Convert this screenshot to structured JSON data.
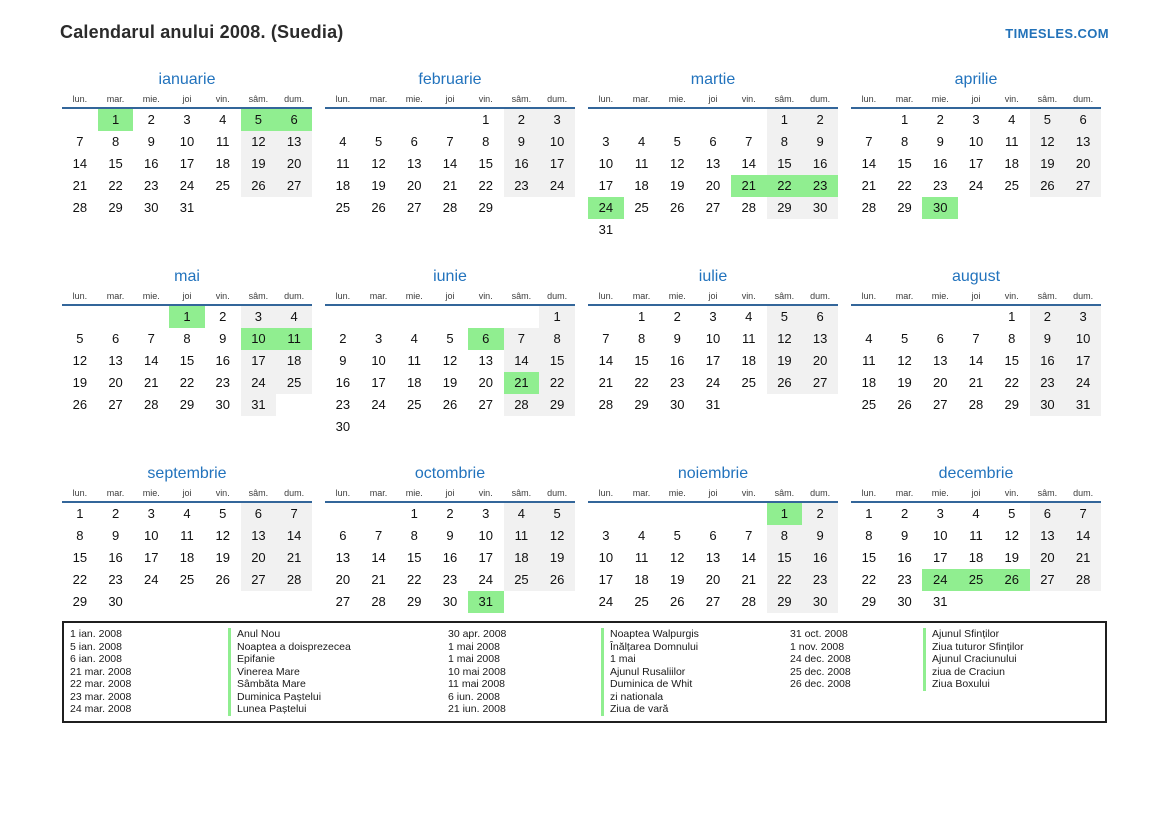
{
  "page": {
    "title": "Calendarul anului 2008. (Suedia)",
    "brand": "TIMESLES.COM"
  },
  "colors": {
    "accent_blue": "#2273bd",
    "header_underline": "#33669a",
    "holiday_green": "#90ee90",
    "weekend_gray": "#f1f1f1"
  },
  "calendar": {
    "year": "2008",
    "day_headers": [
      "lun.",
      "mar.",
      "mie.",
      "joi",
      "vin.",
      "sâm.",
      "dum."
    ],
    "months": [
      {
        "name": "ianuarie",
        "holidays": [
          1,
          5,
          6
        ],
        "weeks": [
          [
            "",
            1,
            2,
            3,
            4,
            5,
            6
          ],
          [
            7,
            8,
            9,
            10,
            11,
            12,
            13
          ],
          [
            14,
            15,
            16,
            17,
            18,
            19,
            20
          ],
          [
            21,
            22,
            23,
            24,
            25,
            26,
            27
          ],
          [
            28,
            29,
            30,
            31,
            "",
            "",
            ""
          ]
        ]
      },
      {
        "name": "februarie",
        "holidays": [],
        "weeks": [
          [
            "",
            "",
            "",
            "",
            1,
            2,
            3
          ],
          [
            4,
            5,
            6,
            7,
            8,
            9,
            10
          ],
          [
            11,
            12,
            13,
            14,
            15,
            16,
            17
          ],
          [
            18,
            19,
            20,
            21,
            22,
            23,
            24
          ],
          [
            25,
            26,
            27,
            28,
            29,
            "",
            ""
          ]
        ]
      },
      {
        "name": "martie",
        "holidays": [
          21,
          22,
          23,
          24
        ],
        "weeks": [
          [
            "",
            "",
            "",
            "",
            "",
            1,
            2
          ],
          [
            3,
            4,
            5,
            6,
            7,
            8,
            9
          ],
          [
            10,
            11,
            12,
            13,
            14,
            15,
            16
          ],
          [
            17,
            18,
            19,
            20,
            21,
            22,
            23
          ],
          [
            24,
            25,
            26,
            27,
            28,
            29,
            30
          ],
          [
            31,
            "",
            "",
            "",
            "",
            "",
            ""
          ]
        ]
      },
      {
        "name": "aprilie",
        "holidays": [
          30
        ],
        "weeks": [
          [
            "",
            1,
            2,
            3,
            4,
            5,
            6
          ],
          [
            7,
            8,
            9,
            10,
            11,
            12,
            13
          ],
          [
            14,
            15,
            16,
            17,
            18,
            19,
            20
          ],
          [
            21,
            22,
            23,
            24,
            25,
            26,
            27
          ],
          [
            28,
            29,
            30,
            "",
            "",
            "",
            ""
          ]
        ]
      },
      {
        "name": "mai",
        "holidays": [
          1,
          10,
          11
        ],
        "weeks": [
          [
            "",
            "",
            "",
            1,
            2,
            3,
            4
          ],
          [
            5,
            6,
            7,
            8,
            9,
            10,
            11
          ],
          [
            12,
            13,
            14,
            15,
            16,
            17,
            18
          ],
          [
            19,
            20,
            21,
            22,
            23,
            24,
            25
          ],
          [
            26,
            27,
            28,
            29,
            30,
            31,
            ""
          ]
        ]
      },
      {
        "name": "iunie",
        "holidays": [
          6,
          21
        ],
        "weeks": [
          [
            "",
            "",
            "",
            "",
            "",
            "",
            1
          ],
          [
            2,
            3,
            4,
            5,
            6,
            7,
            8
          ],
          [
            9,
            10,
            11,
            12,
            13,
            14,
            15
          ],
          [
            16,
            17,
            18,
            19,
            20,
            21,
            22
          ],
          [
            23,
            24,
            25,
            26,
            27,
            28,
            29
          ],
          [
            30,
            "",
            "",
            "",
            "",
            "",
            ""
          ]
        ]
      },
      {
        "name": "iulie",
        "holidays": [],
        "weeks": [
          [
            "",
            1,
            2,
            3,
            4,
            5,
            6
          ],
          [
            7,
            8,
            9,
            10,
            11,
            12,
            13
          ],
          [
            14,
            15,
            16,
            17,
            18,
            19,
            20
          ],
          [
            21,
            22,
            23,
            24,
            25,
            26,
            27
          ],
          [
            28,
            29,
            30,
            31,
            "",
            "",
            ""
          ]
        ]
      },
      {
        "name": "august",
        "holidays": [],
        "weeks": [
          [
            "",
            "",
            "",
            "",
            1,
            2,
            3
          ],
          [
            4,
            5,
            6,
            7,
            8,
            9,
            10
          ],
          [
            11,
            12,
            13,
            14,
            15,
            16,
            17
          ],
          [
            18,
            19,
            20,
            21,
            22,
            23,
            24
          ],
          [
            25,
            26,
            27,
            28,
            29,
            30,
            31
          ]
        ]
      },
      {
        "name": "septembrie",
        "holidays": [],
        "weeks": [
          [
            1,
            2,
            3,
            4,
            5,
            6,
            7
          ],
          [
            8,
            9,
            10,
            11,
            12,
            13,
            14
          ],
          [
            15,
            16,
            17,
            18,
            19,
            20,
            21
          ],
          [
            22,
            23,
            24,
            25,
            26,
            27,
            28
          ],
          [
            29,
            30,
            "",
            "",
            "",
            "",
            ""
          ]
        ]
      },
      {
        "name": "octombrie",
        "holidays": [
          31
        ],
        "weeks": [
          [
            "",
            "",
            1,
            2,
            3,
            4,
            5
          ],
          [
            6,
            7,
            8,
            9,
            10,
            11,
            12
          ],
          [
            13,
            14,
            15,
            16,
            17,
            18,
            19
          ],
          [
            20,
            21,
            22,
            23,
            24,
            25,
            26
          ],
          [
            27,
            28,
            29,
            30,
            31,
            "",
            ""
          ]
        ]
      },
      {
        "name": "noiembrie",
        "holidays": [
          1
        ],
        "weeks": [
          [
            "",
            "",
            "",
            "",
            "",
            1,
            2
          ],
          [
            3,
            4,
            5,
            6,
            7,
            8,
            9
          ],
          [
            10,
            11,
            12,
            13,
            14,
            15,
            16
          ],
          [
            17,
            18,
            19,
            20,
            21,
            22,
            23
          ],
          [
            24,
            25,
            26,
            27,
            28,
            29,
            30
          ]
        ]
      },
      {
        "name": "decembrie",
        "holidays": [
          24,
          25,
          26
        ],
        "weeks": [
          [
            1,
            2,
            3,
            4,
            5,
            6,
            7
          ],
          [
            8,
            9,
            10,
            11,
            12,
            13,
            14
          ],
          [
            15,
            16,
            17,
            18,
            19,
            20,
            21
          ],
          [
            22,
            23,
            24,
            25,
            26,
            27,
            28
          ],
          [
            29,
            30,
            31,
            "",
            "",
            "",
            ""
          ]
        ]
      }
    ]
  },
  "legend": {
    "groups": [
      {
        "entries": [
          {
            "date": "1 ian. 2008",
            "name": "Anul Nou"
          },
          {
            "date": "5 ian. 2008",
            "name": "Noaptea a doisprezecea"
          },
          {
            "date": "6 ian. 2008",
            "name": "Epifanie"
          },
          {
            "date": "21 mar. 2008",
            "name": "Vinerea Mare"
          },
          {
            "date": "22 mar. 2008",
            "name": "Sâmbăta Mare"
          },
          {
            "date": "23 mar. 2008",
            "name": "Duminica Paștelui"
          },
          {
            "date": "24 mar. 2008",
            "name": "Lunea Paștelui"
          }
        ]
      },
      {
        "entries": [
          {
            "date": "30 apr. 2008",
            "name": "Noaptea Walpurgis"
          },
          {
            "date": "1 mai 2008",
            "name": "Înălțarea Domnului"
          },
          {
            "date": "1 mai 2008",
            "name": "1 mai"
          },
          {
            "date": "10 mai 2008",
            "name": "Ajunul Rusaliilor"
          },
          {
            "date": "11 mai 2008",
            "name": "Duminica de Whit"
          },
          {
            "date": "6 iun. 2008",
            "name": "zi nationala"
          },
          {
            "date": "21 iun. 2008",
            "name": "Ziua de vară"
          }
        ]
      },
      {
        "entries": [
          {
            "date": "31 oct. 2008",
            "name": "Ajunul Sfinților"
          },
          {
            "date": "1 nov. 2008",
            "name": "Ziua tuturor Sfinților"
          },
          {
            "date": "24 dec. 2008",
            "name": "Ajunul Craciunului"
          },
          {
            "date": "25 dec. 2008",
            "name": "ziua de Craciun"
          },
          {
            "date": "26 dec. 2008",
            "name": "Ziua Boxului"
          }
        ]
      }
    ]
  }
}
